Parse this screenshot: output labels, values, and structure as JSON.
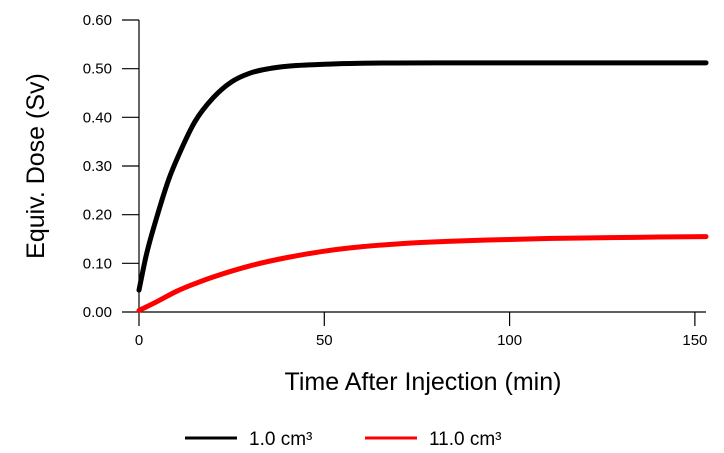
{
  "chart_data": {
    "type": "line",
    "xlabel": "Time After Injection (min)",
    "ylabel": "Equiv. Dose (Sv)",
    "xlim": [
      0,
      153
    ],
    "ylim": [
      0,
      0.6
    ],
    "xticks": [
      0,
      50,
      100,
      150
    ],
    "yticks": [
      0,
      0.1,
      0.2,
      0.3,
      0.4,
      0.5,
      0.6
    ],
    "x_tick_labels": [
      "0",
      "50",
      "100",
      "150"
    ],
    "y_tick_labels": [
      "0.00",
      "0.10",
      "0.20",
      "0.30",
      "0.40",
      "0.50",
      "0.60"
    ],
    "grid": false,
    "legend_position": "bottom-center",
    "series": [
      {
        "name": "1.0 cm³",
        "color": "#000000",
        "x": [
          0,
          2,
          5,
          8,
          10,
          15,
          20,
          25,
          30,
          35,
          40,
          50,
          60,
          80,
          100,
          120,
          140,
          153
        ],
        "y": [
          0.045,
          0.118,
          0.2,
          0.272,
          0.31,
          0.39,
          0.44,
          0.473,
          0.491,
          0.5,
          0.505,
          0.509,
          0.511,
          0.512,
          0.512,
          0.512,
          0.512,
          0.512
        ]
      },
      {
        "name": "11.0 cm³",
        "color": "#ff0000",
        "x": [
          0,
          5,
          10,
          15,
          20,
          30,
          40,
          50,
          60,
          70,
          80,
          90,
          100,
          110,
          120,
          130,
          140,
          153
        ],
        "y": [
          0.003,
          0.022,
          0.042,
          0.058,
          0.072,
          0.095,
          0.112,
          0.125,
          0.134,
          0.14,
          0.144,
          0.147,
          0.149,
          0.151,
          0.152,
          0.153,
          0.154,
          0.155
        ]
      }
    ]
  }
}
